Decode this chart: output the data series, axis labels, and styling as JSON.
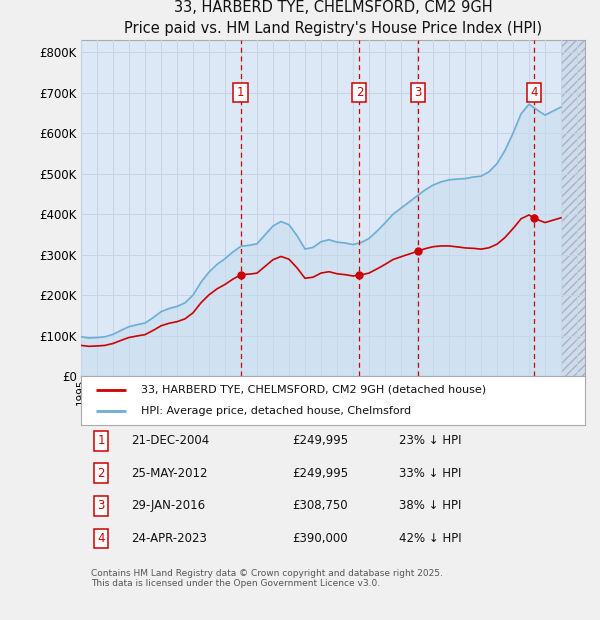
{
  "title": "33, HARBERD TYE, CHELMSFORD, CM2 9GH",
  "subtitle": "Price paid vs. HM Land Registry's House Price Index (HPI)",
  "ylabel_ticks": [
    "£0",
    "£100K",
    "£200K",
    "£300K",
    "£400K",
    "£500K",
    "£600K",
    "£700K",
    "£800K"
  ],
  "ytick_vals": [
    0,
    100000,
    200000,
    300000,
    400000,
    500000,
    600000,
    700000,
    800000
  ],
  "ylim": [
    0,
    830000
  ],
  "xlim_start": 1995.0,
  "xlim_end": 2026.5,
  "hpi_color": "#6baed6",
  "hpi_fill_color": "#c6dcef",
  "price_color": "#cc0000",
  "vline_color": "#cc0000",
  "grid_color": "#c8d4e3",
  "plot_bg": "#dce8f5",
  "fig_bg": "#f0f0f0",
  "legend_bg": "white",
  "legend_label_red": "33, HARBERD TYE, CHELMSFORD, CM2 9GH (detached house)",
  "legend_label_blue": "HPI: Average price, detached house, Chelmsford",
  "transactions": [
    {
      "label": "1",
      "year_dec": 2004.97,
      "price": 249995
    },
    {
      "label": "2",
      "year_dec": 2012.4,
      "price": 249995
    },
    {
      "label": "3",
      "year_dec": 2016.08,
      "price": 308750
    },
    {
      "label": "4",
      "year_dec": 2023.32,
      "price": 390000
    }
  ],
  "table_rows": [
    {
      "num": "1",
      "date": "21-DEC-2004",
      "price": "£249,995",
      "pct": "23% ↓ HPI"
    },
    {
      "num": "2",
      "date": "25-MAY-2012",
      "price": "£249,995",
      "pct": "33% ↓ HPI"
    },
    {
      "num": "3",
      "date": "29-JAN-2016",
      "price": "£308,750",
      "pct": "38% ↓ HPI"
    },
    {
      "num": "4",
      "date": "24-APR-2023",
      "price": "£390,000",
      "pct": "42% ↓ HPI"
    }
  ],
  "footnote": "Contains HM Land Registry data © Crown copyright and database right 2025.\nThis data is licensed under the Open Government Licence v3.0."
}
